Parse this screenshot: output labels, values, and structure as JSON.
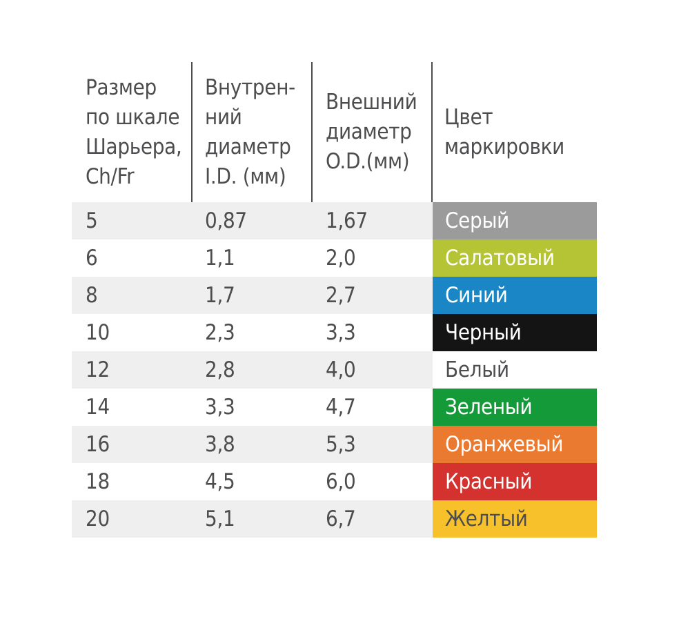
{
  "table": {
    "headers": [
      "Размер\nпо шкале\nШарьера,\nCh/Fr",
      "Внутрен-\nний\nдиаметр\nI.D. (мм)",
      "Внешний\nдиаметр\nO.D.(мм)",
      "Цвет\nмаркировки"
    ],
    "rows": [
      {
        "size": "5",
        "id": "0,87",
        "od": "1,67",
        "color_name": "Серый",
        "color": "#9c9b9b",
        "text_color": "#ffffff",
        "shade": true
      },
      {
        "size": "6",
        "id": "1,1",
        "od": "2,0",
        "color_name": "Салатовый",
        "color": "#b5c435",
        "text_color": "#ffffff",
        "shade": false
      },
      {
        "size": "8",
        "id": "1,7",
        "od": "2,7",
        "color_name": "Синий",
        "color": "#1b86c6",
        "text_color": "#ffffff",
        "shade": true
      },
      {
        "size": "10",
        "id": "2,3",
        "od": "3,3",
        "color_name": "Черный",
        "color": "#141414",
        "text_color": "#ffffff",
        "shade": false
      },
      {
        "size": "12",
        "id": "2,8",
        "od": "4,0",
        "color_name": "Белый",
        "color": "#ffffff",
        "text_color": "#4d4d4f",
        "shade": true
      },
      {
        "size": "14",
        "id": "3,3",
        "od": "4,7",
        "color_name": "Зеленый",
        "color": "#159a3a",
        "text_color": "#ffffff",
        "shade": false
      },
      {
        "size": "16",
        "id": "3,8",
        "od": "5,3",
        "color_name": "Оранжевый",
        "color": "#ea7a2f",
        "text_color": "#ffffff",
        "shade": true
      },
      {
        "size": "18",
        "id": "4,5",
        "od": "6,0",
        "color_name": "Красный",
        "color": "#d3322e",
        "text_color": "#ffffff",
        "shade": false
      },
      {
        "size": "20",
        "id": "5,1",
        "od": "6,7",
        "color_name": "Желтый",
        "color": "#f7c12c",
        "text_color": "#4d4d4f",
        "shade": true
      }
    ]
  }
}
